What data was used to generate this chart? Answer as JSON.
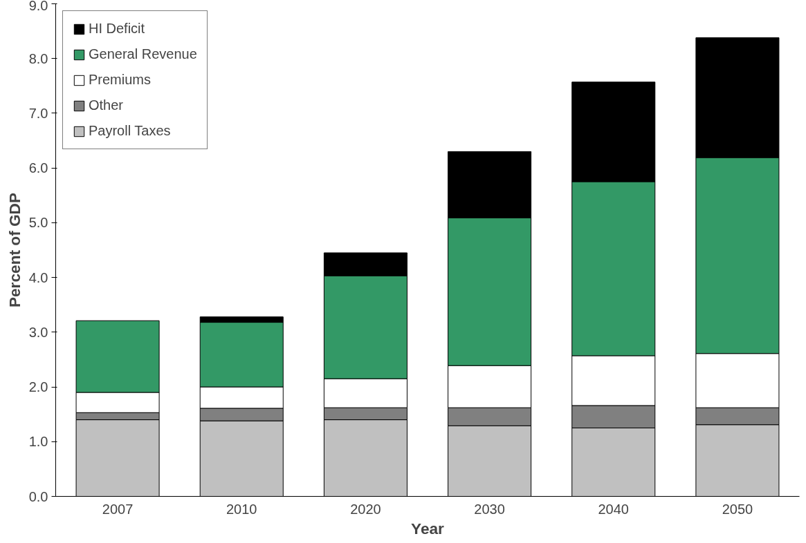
{
  "chart_data": {
    "type": "bar",
    "stacked": true,
    "xlabel": "Year",
    "ylabel": "Percent of GDP",
    "categories": [
      "2007",
      "2010",
      "2020",
      "2030",
      "2040",
      "2050"
    ],
    "series": [
      {
        "name": "Payroll Taxes",
        "color": "#c0c0c0",
        "values": [
          1.4,
          1.38,
          1.4,
          1.29,
          1.25,
          1.31
        ]
      },
      {
        "name": "Other",
        "color": "#808080",
        "values": [
          0.13,
          0.23,
          0.22,
          0.33,
          0.41,
          0.31
        ]
      },
      {
        "name": "Premiums",
        "color": "#ffffff",
        "values": [
          0.37,
          0.39,
          0.53,
          0.77,
          0.91,
          0.99
        ]
      },
      {
        "name": "General Revenue",
        "color": "#339966",
        "values": [
          1.31,
          1.18,
          1.88,
          2.7,
          3.18,
          3.58
        ]
      },
      {
        "name": "HI Deficit",
        "color": "#000000",
        "values": [
          0,
          0.1,
          0.42,
          1.21,
          1.82,
          2.19
        ]
      }
    ],
    "ylim": [
      0,
      9
    ],
    "yticks": [
      {
        "value": 0,
        "label": "0.0"
      },
      {
        "value": 1,
        "label": "1.0"
      },
      {
        "value": 2,
        "label": "2.0"
      },
      {
        "value": 3,
        "label": "3.0"
      },
      {
        "value": 4,
        "label": "4.0"
      },
      {
        "value": 5,
        "label": "5.0"
      },
      {
        "value": 6,
        "label": "6.0"
      },
      {
        "value": 7,
        "label": "7.0"
      },
      {
        "value": 8,
        "label": "8.0"
      },
      {
        "value": 9,
        "label": "9.0"
      }
    ],
    "grid": false,
    "legend": "top left"
  }
}
